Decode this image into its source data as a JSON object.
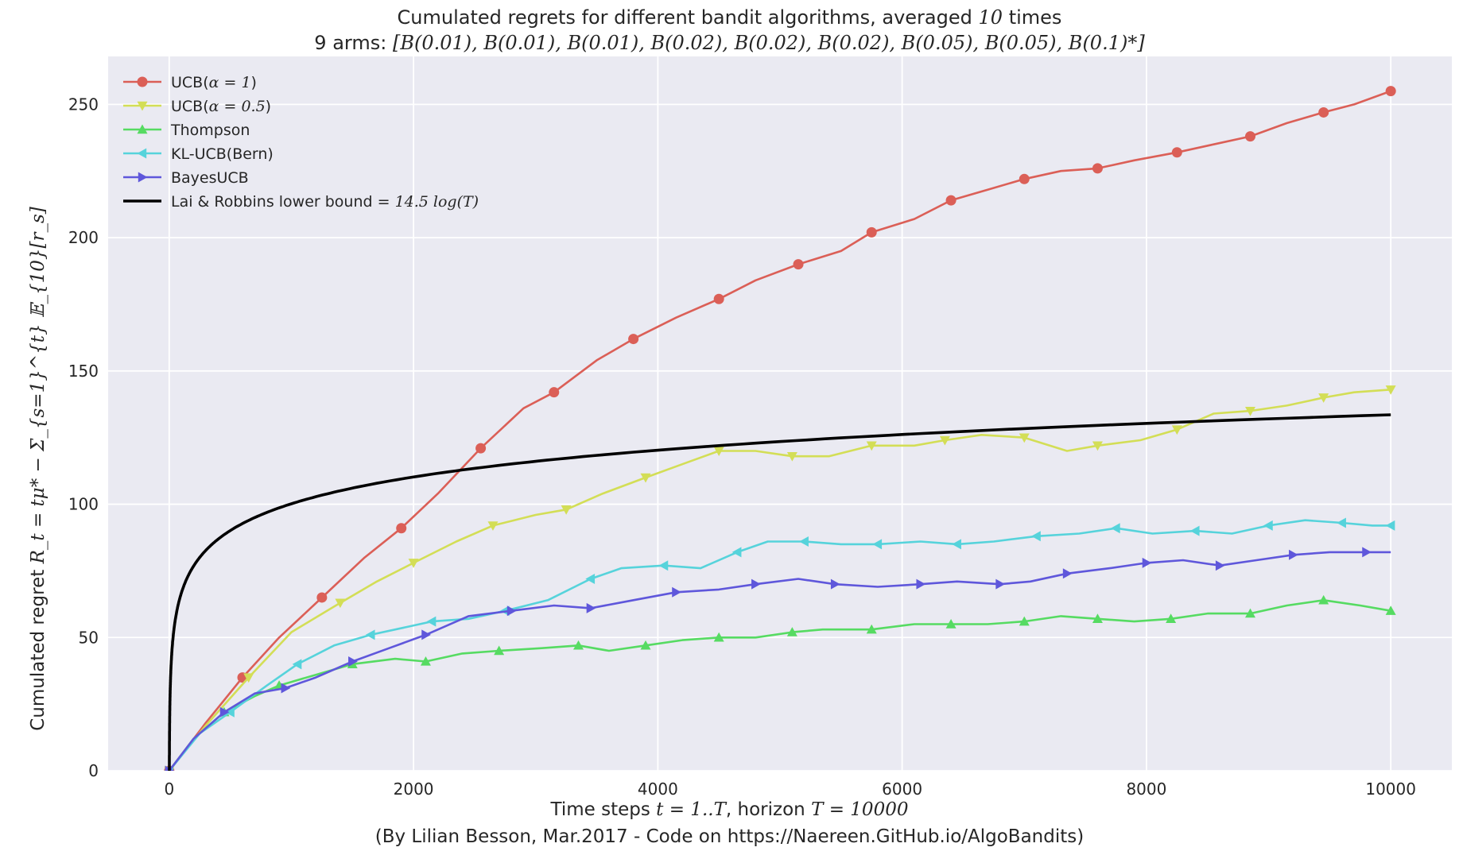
{
  "chart_data": {
    "type": "line",
    "title": "Cumulated regrets for different bandit algorithms, averaged",
    "title_math": "10",
    "title_suffix": "times",
    "subtitle": "9 arms:",
    "subtitle_math": "[B(0.01), B(0.01), B(0.01), B(0.02), B(0.02), B(0.02), B(0.05), B(0.05), B(0.1)*]",
    "xlabel": "Time steps",
    "xlabel_math1": "t = 1..T",
    "xlabel_mid": ", horizon",
    "xlabel_math2": "T = 10000",
    "ylabel": "Cumulated regret",
    "ylabel_math": "R_t = tμ* − Σ_{s=1}^{t} 𝔼_{10}[r_s]",
    "credit": "(By Lilian Besson, Mar.2017 - Code on https://Naereen.GitHub.io/AlgoBandits)",
    "xlim": [
      -500,
      10500
    ],
    "ylim": [
      0,
      268
    ],
    "xticks": [
      0,
      2000,
      4000,
      6000,
      8000,
      10000
    ],
    "yticks": [
      0,
      50,
      100,
      150,
      200,
      250
    ],
    "grid": true,
    "background": "#EAEAF2",
    "legend_position": "top-left",
    "series": [
      {
        "name": "UCB(",
        "name_math": "α = 1",
        "name_suffix": ")",
        "color": "#DB5F57",
        "marker": "circle",
        "x": [
          0,
          300,
          600,
          900,
          1250,
          1600,
          1900,
          2200,
          2550,
          2900,
          3150,
          3500,
          3800,
          4150,
          4500,
          4800,
          5150,
          5500,
          5750,
          6100,
          6400,
          6700,
          7000,
          7300,
          7600,
          7900,
          8250,
          8550,
          8850,
          9150,
          9450,
          9700,
          10000
        ],
        "y": [
          0,
          18,
          35,
          50,
          65,
          80,
          91,
          104,
          121,
          136,
          142,
          154,
          162,
          170,
          177,
          184,
          190,
          195,
          202,
          207,
          214,
          218,
          222,
          225,
          226,
          229,
          232,
          235,
          238,
          243,
          247,
          250,
          255
        ]
      },
      {
        "name": "UCB(",
        "name_math": "α = 0.5",
        "name_suffix": ")",
        "color": "#D3DE56",
        "marker": "triangle-down",
        "x": [
          0,
          300,
          650,
          1000,
          1400,
          1700,
          2000,
          2350,
          2650,
          3000,
          3250,
          3550,
          3900,
          4200,
          4500,
          4800,
          5100,
          5400,
          5750,
          6100,
          6350,
          6650,
          7000,
          7350,
          7600,
          7950,
          8250,
          8550,
          8850,
          9150,
          9450,
          9700,
          10000
        ],
        "y": [
          0,
          17,
          35,
          52,
          63,
          71,
          78,
          86,
          92,
          96,
          98,
          104,
          110,
          115,
          120,
          120,
          118,
          118,
          122,
          122,
          124,
          126,
          125,
          120,
          122,
          124,
          128,
          134,
          135,
          137,
          140,
          142,
          143
        ]
      },
      {
        "name": "Thompson",
        "color": "#56DB62",
        "marker": "triangle-up",
        "x": [
          0,
          200,
          450,
          700,
          900,
          1200,
          1500,
          1850,
          2100,
          2400,
          2700,
          3050,
          3350,
          3600,
          3900,
          4200,
          4500,
          4800,
          5100,
          5350,
          5750,
          6100,
          6400,
          6700,
          7000,
          7300,
          7600,
          7900,
          8200,
          8500,
          8850,
          9150,
          9450,
          9750,
          10000
        ],
        "y": [
          0,
          12,
          22,
          28,
          32,
          36,
          40,
          42,
          41,
          44,
          45,
          46,
          47,
          45,
          47,
          49,
          50,
          50,
          52,
          53,
          53,
          55,
          55,
          55,
          56,
          58,
          57,
          56,
          57,
          59,
          59,
          62,
          64,
          62,
          60
        ]
      },
      {
        "name": "KL-UCB(Bern)",
        "color": "#56D3DB",
        "marker": "triangle-left",
        "x": [
          0,
          250,
          500,
          800,
          1050,
          1350,
          1650,
          1950,
          2150,
          2450,
          2750,
          3100,
          3450,
          3700,
          4050,
          4350,
          4650,
          4900,
          5200,
          5500,
          5800,
          6150,
          6450,
          6750,
          7100,
          7450,
          7750,
          8050,
          8400,
          8700,
          9000,
          9300,
          9600,
          9850,
          10000
        ],
        "y": [
          0,
          14,
          22,
          32,
          40,
          47,
          51,
          54,
          56,
          57,
          60,
          64,
          72,
          76,
          77,
          76,
          82,
          86,
          86,
          85,
          85,
          86,
          85,
          86,
          88,
          89,
          91,
          89,
          90,
          89,
          92,
          94,
          93,
          92,
          92
        ]
      },
      {
        "name": "BayesUCB",
        "color": "#5F57DB",
        "marker": "triangle-right",
        "x": [
          0,
          200,
          450,
          700,
          950,
          1200,
          1500,
          1800,
          2100,
          2450,
          2800,
          3150,
          3450,
          3800,
          4150,
          4500,
          4800,
          5150,
          5450,
          5800,
          6150,
          6450,
          6800,
          7050,
          7350,
          7700,
          8000,
          8300,
          8600,
          8900,
          9200,
          9500,
          9800,
          10000
        ],
        "y": [
          0,
          12,
          22,
          29,
          31,
          35,
          41,
          46,
          51,
          58,
          60,
          62,
          61,
          64,
          67,
          68,
          70,
          72,
          70,
          69,
          70,
          71,
          70,
          71,
          74,
          76,
          78,
          79,
          77,
          79,
          81,
          82,
          82,
          82
        ]
      },
      {
        "name": "Lai & Robbins lower bound =",
        "name_math": "14.5 log(T)",
        "color": "#000000",
        "marker": "none",
        "formula_coefficient": 14.5,
        "x": [
          1,
          10,
          50,
          100,
          200,
          400,
          700,
          1000,
          1500,
          2000,
          3000,
          4000,
          5000,
          6000,
          7000,
          8000,
          9000,
          10000
        ],
        "y": [
          0,
          33.4,
          56.7,
          66.8,
          76.8,
          86.9,
          95.0,
          100.2,
          106.0,
          110.2,
          116.1,
          120.3,
          123.5,
          126.1,
          128.4,
          130.3,
          132.0,
          133.5
        ]
      }
    ]
  }
}
